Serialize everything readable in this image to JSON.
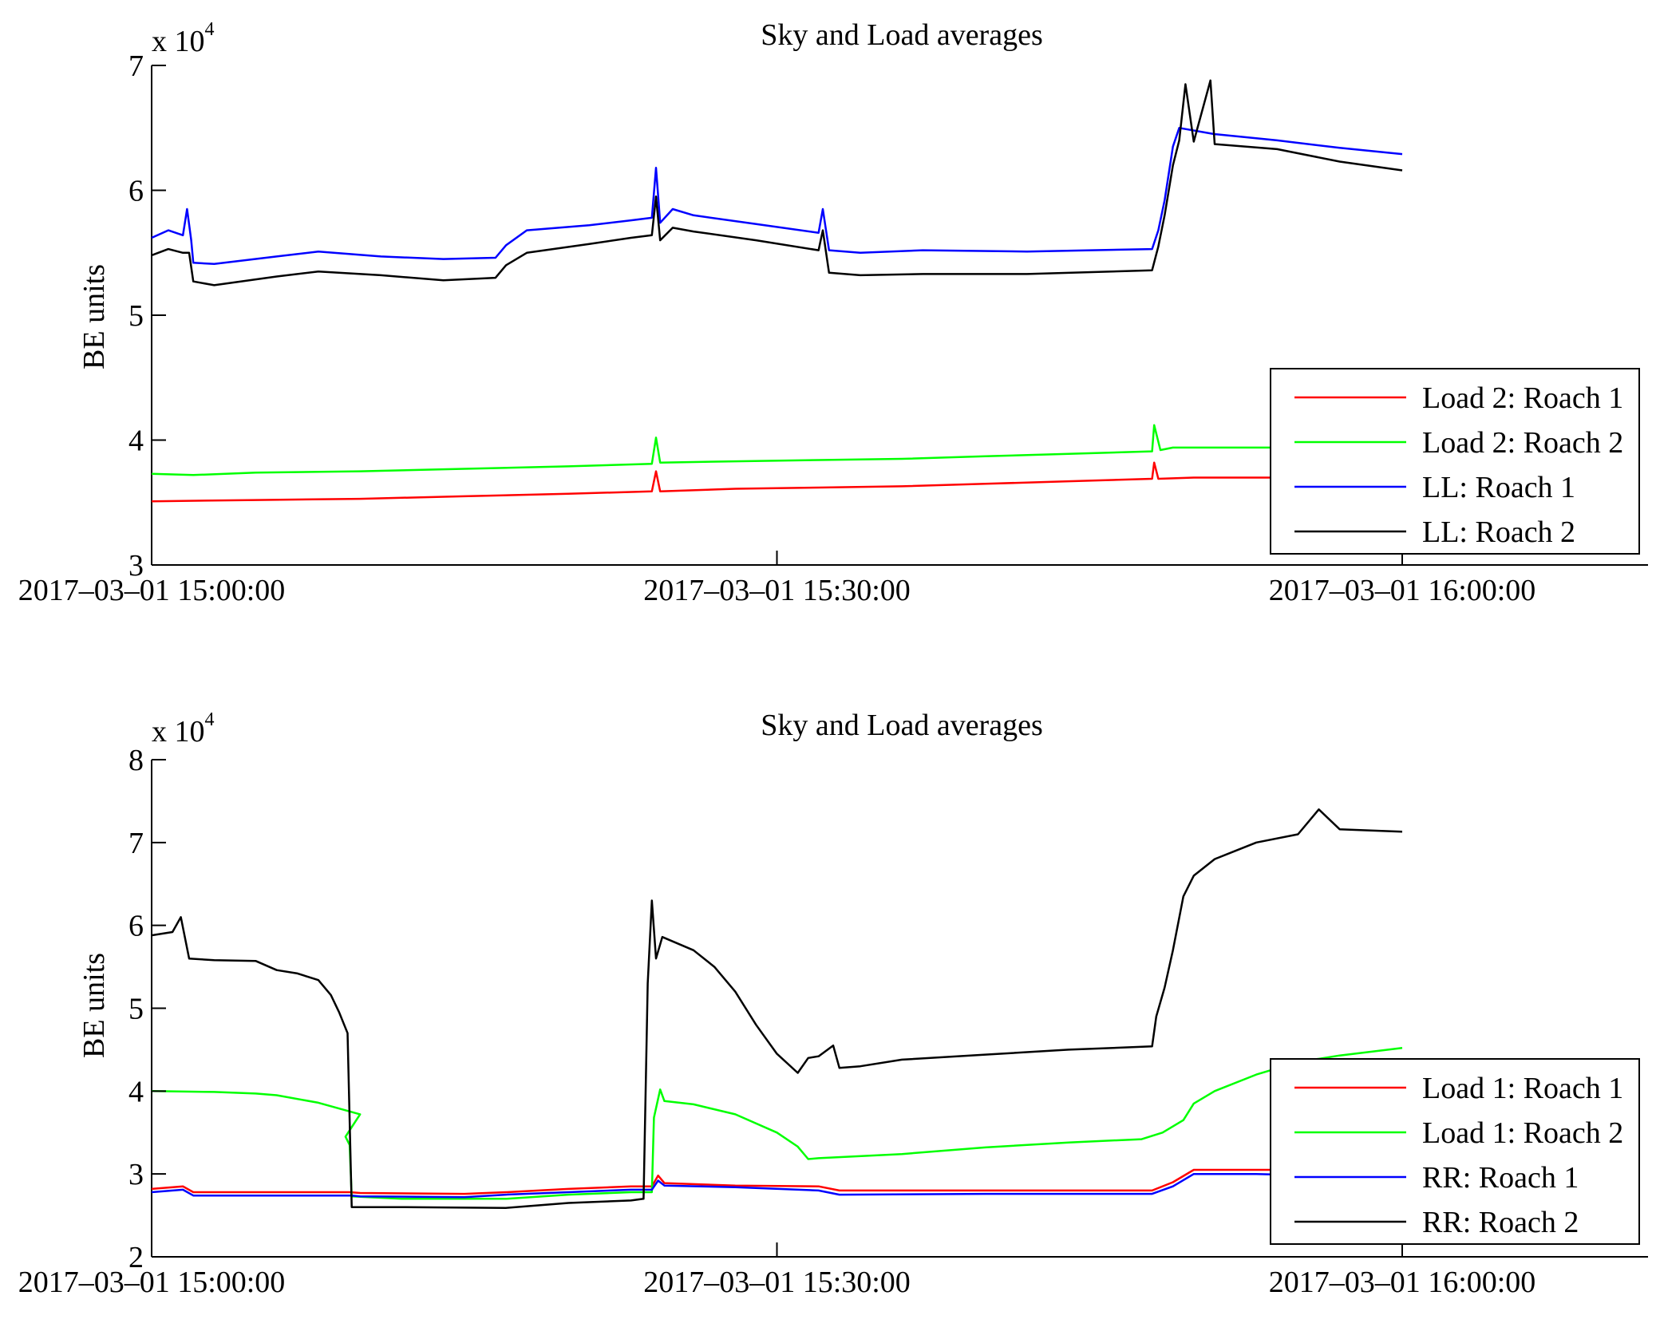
{
  "chart_data": [
    {
      "type": "line",
      "title": "Sky and Load averages",
      "ylabel": "BE units",
      "xlabel": "",
      "y_scale_label": "x 10",
      "y_scale_exponent": "4",
      "x_range_minutes": [
        0,
        60
      ],
      "ylim": [
        30000,
        70000
      ],
      "y_ticks": [
        {
          "v": 30000,
          "label": "3"
        },
        {
          "v": 40000,
          "label": "4"
        },
        {
          "v": 50000,
          "label": "5"
        },
        {
          "v": 60000,
          "label": "6"
        },
        {
          "v": 70000,
          "label": "7"
        }
      ],
      "x_ticks": [
        {
          "t": 0,
          "label": "2017–03–01 15:00:00"
        },
        {
          "t": 30,
          "label": "2017–03–01 15:30:00"
        },
        {
          "t": 60,
          "label": "2017–03–01 16:00:00"
        }
      ],
      "grid": false,
      "legend_position": "bottom-right",
      "series": [
        {
          "name": "Load 2: Roach 1",
          "color": "#ff0000",
          "points": [
            [
              0,
              35100
            ],
            [
              5,
              35200
            ],
            [
              10,
              35300
            ],
            [
              15,
              35500
            ],
            [
              20,
              35700
            ],
            [
              24,
              35900
            ],
            [
              24.2,
              37500
            ],
            [
              24.4,
              35900
            ],
            [
              28,
              36100
            ],
            [
              32,
              36200
            ],
            [
              36,
              36300
            ],
            [
              40,
              36500
            ],
            [
              44,
              36700
            ],
            [
              48,
              36900
            ],
            [
              48.1,
              38200
            ],
            [
              48.3,
              36900
            ],
            [
              50,
              37000
            ],
            [
              56,
              37000
            ],
            [
              60,
              37100
            ]
          ]
        },
        {
          "name": "Load 2: Roach 2",
          "color": "#00ff00",
          "points": [
            [
              0,
              37300
            ],
            [
              2,
              37200
            ],
            [
              5,
              37400
            ],
            [
              10,
              37500
            ],
            [
              15,
              37700
            ],
            [
              20,
              37900
            ],
            [
              24,
              38100
            ],
            [
              24.2,
              40200
            ],
            [
              24.4,
              38200
            ],
            [
              28,
              38300
            ],
            [
              32,
              38400
            ],
            [
              36,
              38500
            ],
            [
              40,
              38700
            ],
            [
              44,
              38900
            ],
            [
              48,
              39100
            ],
            [
              48.1,
              41200
            ],
            [
              48.4,
              39200
            ],
            [
              49,
              39400
            ],
            [
              56,
              39400
            ],
            [
              60,
              39400
            ]
          ]
        },
        {
          "name": "LL: Roach 1",
          "color": "#0000ff",
          "points": [
            [
              0,
              56200
            ],
            [
              0.8,
              56800
            ],
            [
              1.5,
              56400
            ],
            [
              1.7,
              58500
            ],
            [
              1.9,
              56000
            ],
            [
              2.0,
              54200
            ],
            [
              3,
              54100
            ],
            [
              6,
              54700
            ],
            [
              8,
              55100
            ],
            [
              11,
              54700
            ],
            [
              14,
              54500
            ],
            [
              16.5,
              54600
            ],
            [
              17,
              55600
            ],
            [
              18,
              56800
            ],
            [
              21,
              57200
            ],
            [
              23,
              57600
            ],
            [
              24,
              57800
            ],
            [
              24.2,
              61800
            ],
            [
              24.4,
              57400
            ],
            [
              25,
              58500
            ],
            [
              26,
              58000
            ],
            [
              29,
              57300
            ],
            [
              32,
              56600
            ],
            [
              32.2,
              58500
            ],
            [
              32.5,
              55200
            ],
            [
              34,
              55000
            ],
            [
              37,
              55200
            ],
            [
              42,
              55100
            ],
            [
              48,
              55300
            ],
            [
              48.3,
              56800
            ],
            [
              48.6,
              59200
            ],
            [
              49,
              63500
            ],
            [
              49.3,
              65000
            ],
            [
              51,
              64500
            ],
            [
              54,
              64000
            ],
            [
              57,
              63400
            ],
            [
              60,
              62900
            ]
          ]
        },
        {
          "name": "LL: Roach 2",
          "color": "#000000",
          "points": [
            [
              0,
              54800
            ],
            [
              0.8,
              55300
            ],
            [
              1.5,
              55000
            ],
            [
              1.8,
              55000
            ],
            [
              2.0,
              52700
            ],
            [
              3,
              52400
            ],
            [
              6,
              53100
            ],
            [
              8,
              53500
            ],
            [
              11,
              53200
            ],
            [
              14,
              52800
            ],
            [
              16.5,
              53000
            ],
            [
              17,
              54000
            ],
            [
              18,
              55000
            ],
            [
              21,
              55700
            ],
            [
              23,
              56200
            ],
            [
              24,
              56400
            ],
            [
              24.2,
              59500
            ],
            [
              24.4,
              56000
            ],
            [
              25,
              57000
            ],
            [
              26,
              56700
            ],
            [
              29,
              56000
            ],
            [
              32,
              55200
            ],
            [
              32.2,
              56800
            ],
            [
              32.5,
              53400
            ],
            [
              34,
              53200
            ],
            [
              37,
              53300
            ],
            [
              42,
              53300
            ],
            [
              48,
              53600
            ],
            [
              48.3,
              55500
            ],
            [
              48.6,
              58000
            ],
            [
              49,
              62000
            ],
            [
              49.3,
              64000
            ],
            [
              49.6,
              68500
            ],
            [
              50,
              63900
            ],
            [
              50.8,
              68800
            ],
            [
              51,
              63700
            ],
            [
              54,
              63300
            ],
            [
              57,
              62300
            ],
            [
              60,
              61600
            ]
          ]
        }
      ]
    },
    {
      "type": "line",
      "title": "Sky and Load averages",
      "ylabel": "BE units",
      "xlabel": "",
      "y_scale_label": "x 10",
      "y_scale_exponent": "4",
      "x_range_minutes": [
        0,
        60
      ],
      "ylim": [
        20000,
        80000
      ],
      "y_ticks": [
        {
          "v": 20000,
          "label": "2"
        },
        {
          "v": 30000,
          "label": "3"
        },
        {
          "v": 40000,
          "label": "4"
        },
        {
          "v": 50000,
          "label": "5"
        },
        {
          "v": 60000,
          "label": "6"
        },
        {
          "v": 70000,
          "label": "7"
        },
        {
          "v": 80000,
          "label": "8"
        }
      ],
      "x_ticks": [
        {
          "t": 0,
          "label": "2017–03–01 15:00:00"
        },
        {
          "t": 30,
          "label": "2017–03–01 15:30:00"
        },
        {
          "t": 60,
          "label": "2017–03–01 16:00:00"
        }
      ],
      "grid": false,
      "legend_position": "bottom-right",
      "series": [
        {
          "name": "Load 1: Roach 1",
          "color": "#ff0000",
          "points": [
            [
              0,
              28200
            ],
            [
              1.5,
              28500
            ],
            [
              2,
              27800
            ],
            [
              5,
              27800
            ],
            [
              9.5,
              27800
            ],
            [
              10,
              27700
            ],
            [
              15,
              27600
            ],
            [
              17,
              27800
            ],
            [
              20,
              28200
            ],
            [
              23,
              28500
            ],
            [
              24,
              28500
            ],
            [
              24.3,
              29800
            ],
            [
              24.6,
              28900
            ],
            [
              28,
              28600
            ],
            [
              32,
              28500
            ],
            [
              33,
              28000
            ],
            [
              40,
              28000
            ],
            [
              48,
              28000
            ],
            [
              49,
              29000
            ],
            [
              50,
              30500
            ],
            [
              53,
              30500
            ],
            [
              56,
              30500
            ],
            [
              60,
              30500
            ]
          ]
        },
        {
          "name": "Load 1: Roach 2",
          "color": "#00ff00",
          "points": [
            [
              0,
              40000
            ],
            [
              3,
              39900
            ],
            [
              5,
              39700
            ],
            [
              6,
              39500
            ],
            [
              8,
              38600
            ],
            [
              10,
              37200
            ],
            [
              9.3,
              34500
            ],
            [
              9.5,
              33500
            ],
            [
              9.6,
              27300
            ],
            [
              12,
              27000
            ],
            [
              17,
              27000
            ],
            [
              20,
              27500
            ],
            [
              23,
              27800
            ],
            [
              24,
              27800
            ],
            [
              24.1,
              36800
            ],
            [
              24.4,
              40200
            ],
            [
              24.6,
              38800
            ],
            [
              26,
              38400
            ],
            [
              28,
              37200
            ],
            [
              30,
              35000
            ],
            [
              31,
              33300
            ],
            [
              31.5,
              31800
            ],
            [
              32,
              31900
            ],
            [
              36,
              32400
            ],
            [
              40,
              33200
            ],
            [
              44,
              33800
            ],
            [
              47.5,
              34200
            ],
            [
              48.5,
              35000
            ],
            [
              49.5,
              36500
            ],
            [
              50,
              38500
            ],
            [
              51,
              40000
            ],
            [
              53,
              42000
            ],
            [
              55,
              43500
            ],
            [
              57,
              44300
            ],
            [
              60,
              45200
            ]
          ]
        },
        {
          "name": "RR: Roach 1",
          "color": "#0000ff",
          "points": [
            [
              0,
              27800
            ],
            [
              1.5,
              28100
            ],
            [
              2,
              27400
            ],
            [
              5,
              27400
            ],
            [
              9.6,
              27400
            ],
            [
              10,
              27300
            ],
            [
              15,
              27200
            ],
            [
              17,
              27500
            ],
            [
              20,
              27800
            ],
            [
              23,
              28100
            ],
            [
              24,
              28100
            ],
            [
              24.3,
              29200
            ],
            [
              24.6,
              28600
            ],
            [
              28,
              28400
            ],
            [
              32,
              28000
            ],
            [
              33,
              27500
            ],
            [
              40,
              27600
            ],
            [
              48,
              27600
            ],
            [
              49,
              28500
            ],
            [
              50,
              30000
            ],
            [
              53,
              30000
            ],
            [
              56,
              29800
            ],
            [
              60,
              29700
            ]
          ]
        },
        {
          "name": "RR: Roach 2",
          "color": "#000000",
          "points": [
            [
              0,
              58800
            ],
            [
              1,
              59200
            ],
            [
              1.4,
              61000
            ],
            [
              1.8,
              56000
            ],
            [
              3,
              55800
            ],
            [
              5,
              55700
            ],
            [
              6,
              54600
            ],
            [
              7,
              54200
            ],
            [
              8,
              53400
            ],
            [
              8.6,
              51600
            ],
            [
              9,
              49500
            ],
            [
              9.4,
              47000
            ],
            [
              9.6,
              26000
            ],
            [
              12,
              26000
            ],
            [
              17,
              25900
            ],
            [
              20,
              26500
            ],
            [
              23,
              26800
            ],
            [
              23.6,
              27000
            ],
            [
              23.8,
              53000
            ],
            [
              24,
              63000
            ],
            [
              24.2,
              56000
            ],
            [
              24.5,
              58600
            ],
            [
              26,
              57000
            ],
            [
              27,
              55000
            ],
            [
              28,
              52000
            ],
            [
              29,
              48000
            ],
            [
              30,
              44500
            ],
            [
              31,
              42200
            ],
            [
              31.5,
              44000
            ],
            [
              32,
              44200
            ],
            [
              32.7,
              45500
            ],
            [
              33,
              42800
            ],
            [
              34,
              43000
            ],
            [
              36,
              43800
            ],
            [
              40,
              44400
            ],
            [
              44,
              45000
            ],
            [
              48,
              45400
            ],
            [
              48.2,
              49000
            ],
            [
              48.6,
              52500
            ],
            [
              49,
              57000
            ],
            [
              49.5,
              63500
            ],
            [
              50,
              66000
            ],
            [
              51,
              68000
            ],
            [
              52,
              69000
            ],
            [
              53,
              70000
            ],
            [
              55,
              71000
            ],
            [
              56,
              74000
            ],
            [
              57,
              71600
            ],
            [
              60,
              71300
            ]
          ]
        }
      ]
    }
  ]
}
